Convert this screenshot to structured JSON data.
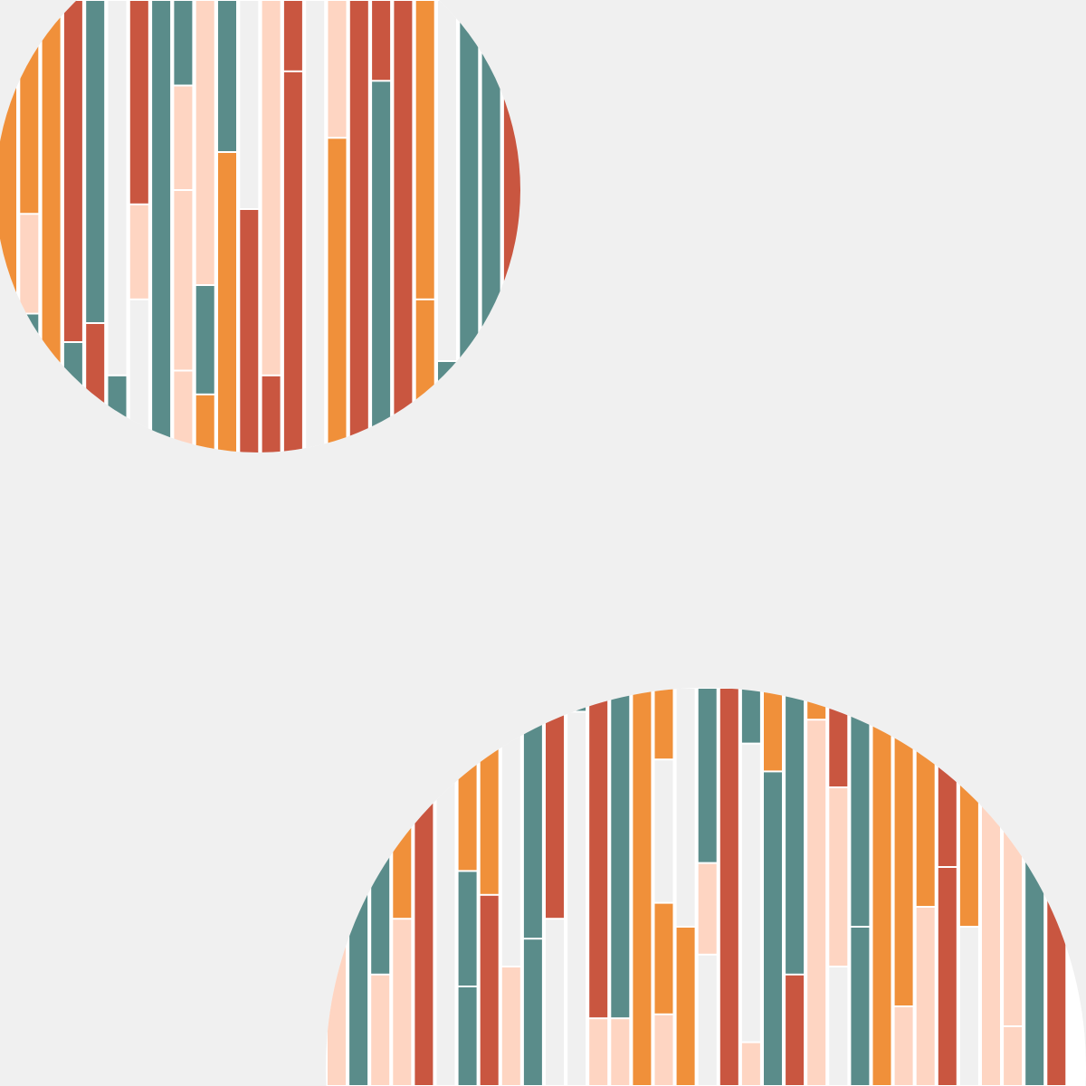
{
  "background": "#f0f0f0",
  "palette": {
    "orange": "#f0903a",
    "red": "#c95640",
    "teal": "#5a8c8a",
    "peach": "#fed5c2",
    "white": "#f0f0f0",
    "gap": "#ffffff"
  },
  "circles": [
    {
      "name": "circle-top-left",
      "stripes": [
        [
          [
            "orange",
            1
          ]
        ],
        [
          [
            "orange",
            0.45
          ],
          [
            "peach",
            0.21
          ],
          [
            "teal",
            0.11
          ],
          [
            "orange",
            0.23
          ]
        ],
        [
          [
            "orange",
            1
          ]
        ],
        [
          [
            "red",
            0.72
          ],
          [
            "teal",
            0.28
          ]
        ],
        [
          [
            "teal",
            0.68
          ],
          [
            "red",
            0.32
          ]
        ],
        [
          [
            "white",
            0.79
          ],
          [
            "teal",
            0.21
          ]
        ],
        [
          [
            "red",
            0.43
          ],
          [
            "peach",
            0.2
          ],
          [
            "white",
            0.37
          ]
        ],
        [
          [
            "teal",
            1
          ]
        ],
        [
          [
            "teal",
            0.18
          ],
          [
            "peach",
            0.22
          ],
          [
            "peach",
            0.38
          ],
          [
            "peach",
            0.22
          ]
        ],
        [
          [
            "peach",
            0.6
          ],
          [
            "teal",
            0.23
          ],
          [
            "orange",
            0.17
          ]
        ],
        [
          [
            "teal",
            0.32
          ],
          [
            "orange",
            0.68
          ]
        ],
        [
          [
            "white",
            0.44
          ],
          [
            "red",
            0.56
          ]
        ],
        [
          [
            "peach",
            0.79
          ],
          [
            "red",
            0.21
          ]
        ],
        [
          [
            "red",
            0.15
          ],
          [
            "red",
            0.85
          ]
        ],
        [
          [
            "white",
            1
          ]
        ],
        [
          [
            "peach",
            0.29
          ],
          [
            "orange",
            0.71
          ]
        ],
        [
          [
            "red",
            1
          ]
        ],
        [
          [
            "red",
            0.17
          ],
          [
            "teal",
            0.83
          ]
        ],
        [
          [
            "red",
            1
          ]
        ],
        [
          [
            "orange",
            0.63
          ],
          [
            "orange",
            0.37
          ]
        ],
        [
          [
            "white",
            0.76
          ],
          [
            "teal",
            0.24
          ]
        ],
        [
          [
            "teal",
            1
          ]
        ],
        [
          [
            "teal",
            1
          ]
        ],
        [
          [
            "red",
            1
          ]
        ]
      ]
    },
    {
      "name": "circle-bottom-right",
      "stripes": [
        [
          [
            "peach",
            1
          ]
        ],
        [
          [
            "teal",
            1
          ]
        ],
        [
          [
            "teal",
            0.72
          ],
          [
            "peach",
            0.28
          ]
        ],
        [
          [
            "red",
            0.3
          ],
          [
            "orange",
            0.28
          ],
          [
            "peach",
            0.42
          ]
        ],
        [
          [
            "red",
            1
          ]
        ],
        [
          [
            "white",
            1
          ]
        ],
        [
          [
            "teal",
            0.08
          ],
          [
            "orange",
            0.38
          ],
          [
            "teal",
            0.29
          ],
          [
            "teal",
            0.25
          ]
        ],
        [
          [
            "orange",
            0.52
          ],
          [
            "red",
            0.48
          ]
        ],
        [
          [
            "white",
            0.7
          ],
          [
            "peach",
            0.3
          ]
        ],
        [
          [
            "teal",
            0.63
          ],
          [
            "teal",
            0.37
          ]
        ],
        [
          [
            "red",
            0.58
          ],
          [
            "white",
            0.42
          ]
        ],
        [
          [
            "teal",
            0.06
          ],
          [
            "white",
            0.94
          ]
        ],
        [
          [
            "red",
            0.83
          ],
          [
            "peach",
            0.17
          ]
        ],
        [
          [
            "teal",
            0.83
          ],
          [
            "peach",
            0.17
          ]
        ],
        [
          [
            "orange",
            1
          ]
        ],
        [
          [
            "orange",
            0.18
          ],
          [
            "white",
            0.36
          ],
          [
            "orange",
            0.28
          ],
          [
            "peach",
            0.18
          ]
        ],
        [
          [
            "white",
            0.6
          ],
          [
            "orange",
            0.4
          ]
        ],
        [
          [
            "teal",
            0.44
          ],
          [
            "peach",
            0.23
          ],
          [
            "white",
            0.33
          ]
        ],
        [
          [
            "red",
            1
          ]
        ],
        [
          [
            "teal",
            0.14
          ],
          [
            "white",
            0.75
          ],
          [
            "peach",
            0.11
          ]
        ],
        [
          [
            "orange",
            0.21
          ],
          [
            "teal",
            0.79
          ]
        ],
        [
          [
            "teal",
            0.72
          ],
          [
            "red",
            0.28
          ]
        ],
        [
          [
            "orange",
            0.08
          ],
          [
            "peach",
            0.92
          ]
        ],
        [
          [
            "red",
            0.25
          ],
          [
            "peach",
            0.45
          ],
          [
            "white",
            0.3
          ]
        ],
        [
          [
            "teal",
            0.6
          ],
          [
            "teal",
            0.4
          ]
        ],
        [
          [
            "orange",
            1
          ]
        ],
        [
          [
            "orange",
            0.12
          ],
          [
            "orange",
            0.68
          ],
          [
            "peach",
            0.2
          ]
        ],
        [
          [
            "orange",
            0.55
          ],
          [
            "peach",
            0.45
          ]
        ],
        [
          [
            "red",
            0.45
          ],
          [
            "red",
            0.55
          ]
        ],
        [
          [
            "orange",
            0.6
          ],
          [
            "white",
            0.4
          ]
        ],
        [
          [
            "peach",
            1
          ]
        ],
        [
          [
            "peach",
            0.85
          ],
          [
            "peach",
            0.15
          ]
        ],
        [
          [
            "teal",
            1
          ]
        ],
        [
          [
            "red",
            1
          ]
        ]
      ]
    }
  ]
}
